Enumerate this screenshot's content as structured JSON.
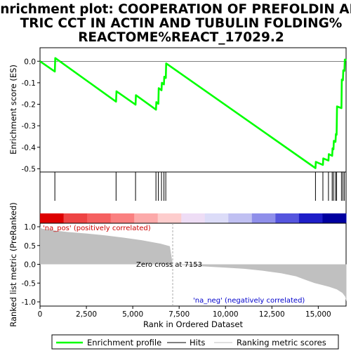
{
  "chart_data": {
    "type": "line",
    "title_lines": [
      "Enrichment plot: COOPERATION OF PREFOLDIN AND",
      "TRIC CCT IN ACTIN AND TUBULIN FOLDING%",
      "REACTOME%REACT_17029.2"
    ],
    "xlabel": "Rank in Ordered Dataset",
    "xlim": [
      0,
      16500
    ],
    "x_ticks": [
      0,
      2500,
      5000,
      7500,
      10000,
      12500,
      15000
    ],
    "x_tick_labels": [
      "0",
      "2,500",
      "5,000",
      "7,500",
      "10,000",
      "12,500",
      "15,000"
    ],
    "es_panel": {
      "ylabel": "Enrichment score (ES)",
      "ylim": [
        -0.52,
        0.04
      ],
      "y_ticks": [
        0.0,
        -0.1,
        -0.2,
        -0.3,
        -0.4,
        -0.5
      ],
      "y_tick_labels": [
        "0.0",
        "-0.1",
        "-0.2",
        "-0.3",
        "-0.4",
        "-0.5"
      ],
      "series": [
        {
          "name": "Enrichment profile",
          "color": "#00ff00",
          "points": [
            [
              0,
              0.0
            ],
            [
              800,
              -0.048
            ],
            [
              820,
              0.015
            ],
            [
              4100,
              -0.188
            ],
            [
              4120,
              -0.14
            ],
            [
              5150,
              -0.202
            ],
            [
              5170,
              -0.158
            ],
            [
              6250,
              -0.225
            ],
            [
              6270,
              -0.19
            ],
            [
              6380,
              -0.198
            ],
            [
              6400,
              -0.125
            ],
            [
              6550,
              -0.135
            ],
            [
              6570,
              -0.1
            ],
            [
              6680,
              -0.108
            ],
            [
              6700,
              -0.072
            ],
            [
              6780,
              -0.078
            ],
            [
              6800,
              -0.01
            ],
            [
              14850,
              -0.497
            ],
            [
              14870,
              -0.468
            ],
            [
              15250,
              -0.482
            ],
            [
              15270,
              -0.452
            ],
            [
              15550,
              -0.462
            ],
            [
              15570,
              -0.432
            ],
            [
              15750,
              -0.44
            ],
            [
              15770,
              -0.405
            ],
            [
              15820,
              -0.41
            ],
            [
              15840,
              -0.37
            ],
            [
              15930,
              -0.375
            ],
            [
              15950,
              -0.338
            ],
            [
              15990,
              -0.342
            ],
            [
              16010,
              -0.21
            ],
            [
              16250,
              -0.218
            ],
            [
              16270,
              -0.085
            ],
            [
              16330,
              -0.088
            ],
            [
              16350,
              -0.042
            ],
            [
              16410,
              -0.045
            ],
            [
              16430,
              0.008
            ],
            [
              16520,
              0.005
            ]
          ]
        }
      ]
    },
    "hits": [
      800,
      4100,
      5150,
      6250,
      6380,
      6550,
      6680,
      6780,
      14850,
      15250,
      15550,
      15750,
      15820,
      15930,
      15990,
      16250,
      16330,
      16410
    ],
    "rank_heatbar_colors": [
      "#dd0000",
      "#ee4444",
      "#f56060",
      "#fa8080",
      "#fcaaaa",
      "#fdcdcd",
      "#eeddf5",
      "#dcdcf8",
      "#c0c0f2",
      "#8f8fea",
      "#5555de",
      "#1e1ec8",
      "#0000a0"
    ],
    "metric_panel": {
      "ylabel": "Ranked list metric (PreRanked)",
      "ylim": [
        -1.0,
        1.0
      ],
      "y_ticks": [
        1.0,
        0.5,
        0.0,
        -0.5,
        -1.0
      ],
      "y_tick_labels": [
        "1.0",
        "0.5",
        "0.0",
        "-0.5",
        "-1.0"
      ],
      "fill_color": "#c0c0c0",
      "zero_cross_rank": 7153,
      "curve": [
        [
          0,
          1.0
        ],
        [
          100,
          0.95
        ],
        [
          600,
          0.91
        ],
        [
          1500,
          0.86
        ],
        [
          2500,
          0.82
        ],
        [
          3500,
          0.77
        ],
        [
          4500,
          0.71
        ],
        [
          5500,
          0.64
        ],
        [
          6500,
          0.55
        ],
        [
          7000,
          0.48
        ],
        [
          7153,
          0.0
        ],
        [
          8000,
          -0.03
        ],
        [
          9000,
          -0.06
        ],
        [
          10000,
          -0.09
        ],
        [
          11000,
          -0.12
        ],
        [
          12000,
          -0.17
        ],
        [
          13000,
          -0.24
        ],
        [
          13800,
          -0.32
        ],
        [
          14400,
          -0.43
        ],
        [
          14800,
          -0.5
        ],
        [
          15200,
          -0.55
        ],
        [
          15600,
          -0.6
        ],
        [
          16000,
          -0.67
        ],
        [
          16300,
          -0.76
        ],
        [
          16450,
          -0.86
        ],
        [
          16520,
          -0.99
        ]
      ]
    },
    "annotations": {
      "pos_label": "'na_pos' (positively correlated)",
      "neg_label": "'na_neg' (negatively correlated)",
      "zero_cross_label": "Zero cross at 7153",
      "pos_color": "#cc0000",
      "neg_color": "#0000cc"
    },
    "legend": {
      "items": [
        {
          "label": "Enrichment profile",
          "color": "#00ff00",
          "kind": "thick-line"
        },
        {
          "label": "Hits",
          "color": "#000000",
          "kind": "line"
        },
        {
          "label": "Ranking metric scores",
          "color": "#c0c0c0",
          "kind": "line"
        }
      ]
    }
  }
}
